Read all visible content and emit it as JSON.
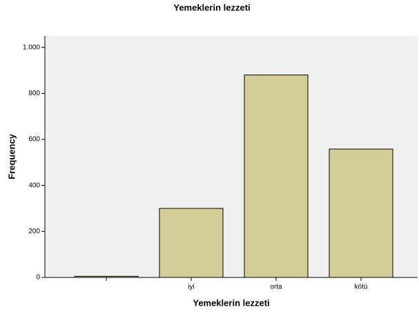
{
  "chart_data": {
    "type": "bar",
    "title": "Yemeklerin lezzeti",
    "x_label": "Yemeklerin lezzeti",
    "y_label": "Frequency",
    "categories": [
      null,
      "iyi",
      "orta",
      "kötü"
    ],
    "values": [
      5,
      300,
      880,
      558
    ],
    "color": "#d3ce97",
    "ylim": [
      0,
      1050
    ],
    "yticks": [
      0,
      200,
      400,
      600,
      800,
      {
        "value": 1000,
        "label": "1.000"
      }
    ],
    "grid": false
  }
}
